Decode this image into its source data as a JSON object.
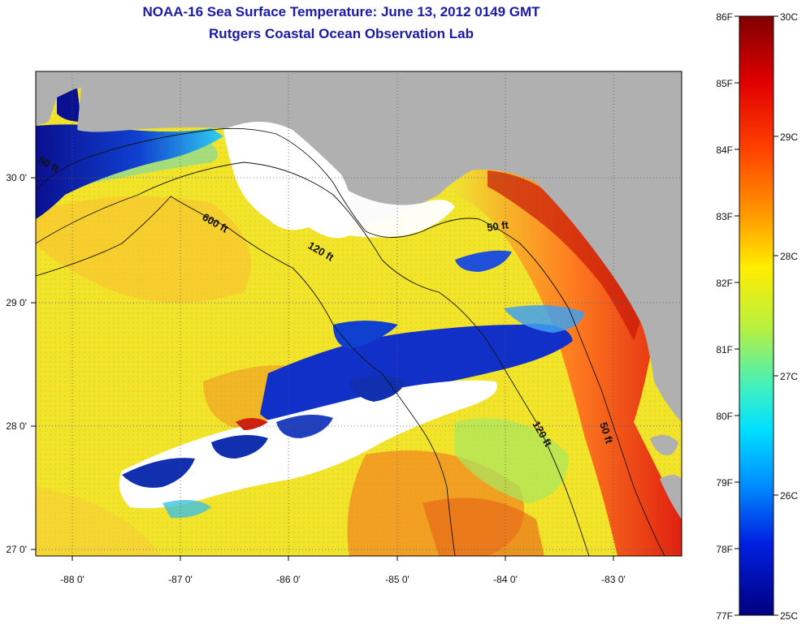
{
  "header": {
    "title_line1": "NOAA-16 Sea Surface Temperature:  June 13, 2012 0149 GMT",
    "title_line2": "Rutgers Coastal Ocean Observation Lab"
  },
  "axes": {
    "x_ticks": [
      {
        "value": -88,
        "label": "-88 0'"
      },
      {
        "value": -87,
        "label": "-87 0'"
      },
      {
        "value": -86,
        "label": "-86 0'"
      },
      {
        "value": -85,
        "label": "-85 0'"
      },
      {
        "value": -84,
        "label": "-84 0'"
      },
      {
        "value": -83,
        "label": "-83 0'"
      }
    ],
    "y_ticks": [
      {
        "value": 30,
        "label": "30 0'"
      },
      {
        "value": 29,
        "label": "29 0'"
      },
      {
        "value": 28,
        "label": "28 0'"
      },
      {
        "value": 27,
        "label": "27 0'"
      }
    ],
    "lon_range": [
      -88.33,
      -82.35
    ],
    "lat_range": [
      26.93,
      30.86
    ]
  },
  "contours": {
    "labels": [
      "50 ft",
      "600 ft",
      "120 ft",
      "50 ft",
      "120 ft",
      "50 ft"
    ]
  },
  "colorbar": {
    "fahrenheit_labels": [
      "86F",
      "85F",
      "84F",
      "83F",
      "82F",
      "81F",
      "80F",
      "79F",
      "78F",
      "77F"
    ],
    "celsius_labels": [
      "30C",
      "29C",
      "28C",
      "27C",
      "26C",
      "25C"
    ],
    "range_f": [
      77,
      86
    ],
    "range_c": [
      25,
      30
    ]
  },
  "colors": {
    "title": "#1a1aa8",
    "land": "#b0b0b0",
    "cloud": "#ffffff"
  }
}
